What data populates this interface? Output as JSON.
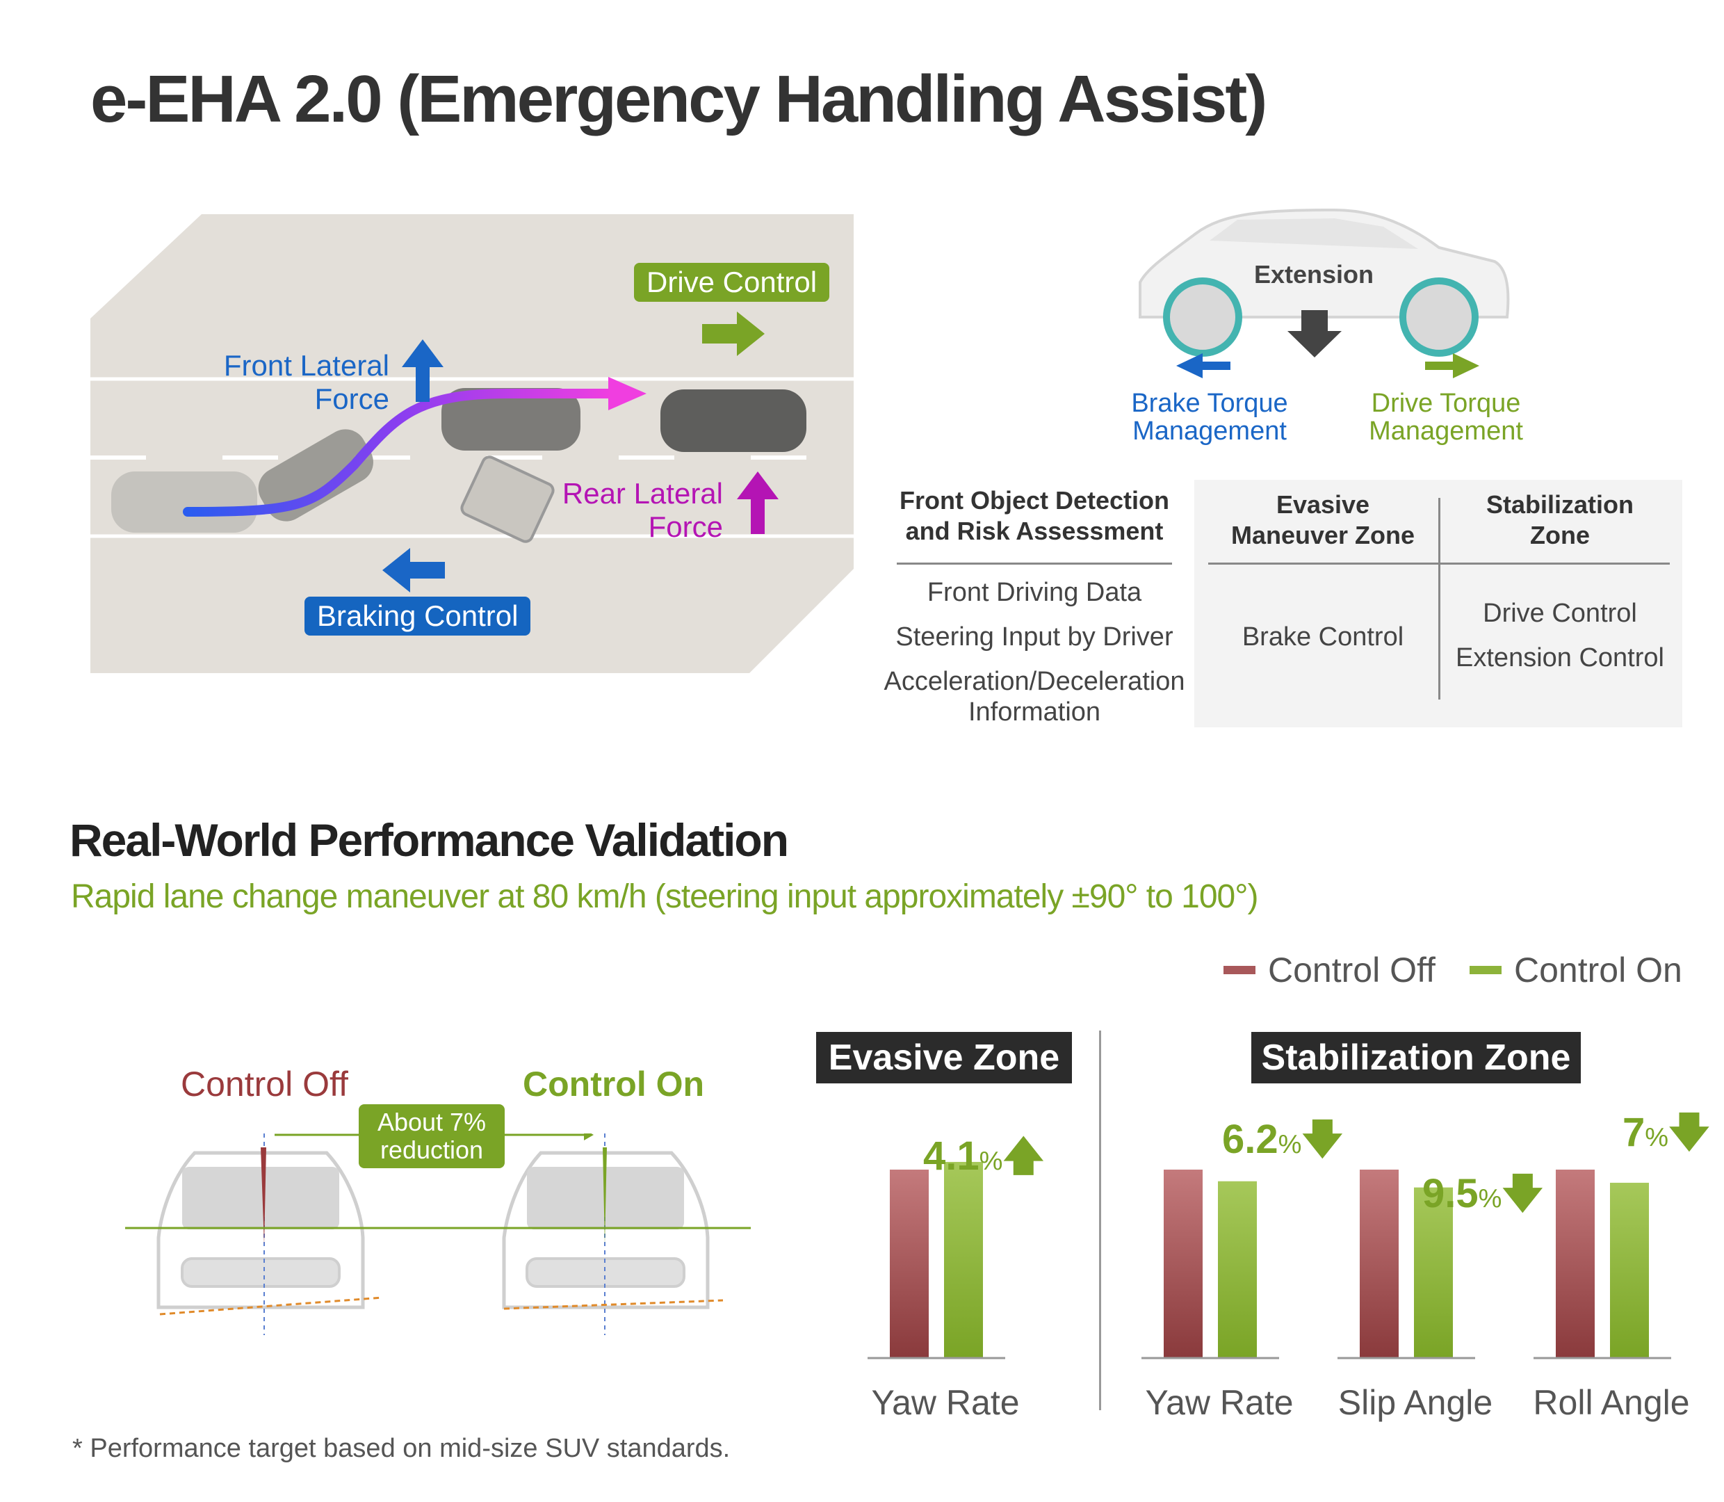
{
  "title": "e-EHA 2.0 (Emergency Handling Assist)",
  "diagram": {
    "drive_control": "Drive Control",
    "front_lateral_force": [
      "Front Lateral",
      "Force"
    ],
    "rear_lateral_force": [
      "Rear Lateral",
      "Force"
    ],
    "braking_control": "Braking Control"
  },
  "car_side": {
    "extension": "Extension",
    "brake_torque": [
      "Brake Torque",
      "Management"
    ],
    "drive_torque": [
      "Drive Torque",
      "Management"
    ]
  },
  "table": {
    "col1_header": [
      "Front Object Detection",
      "and Risk Assessment"
    ],
    "col2_header": [
      "Evasive",
      "Maneuver Zone"
    ],
    "col3_header": [
      "Stabilization",
      "Zone"
    ],
    "col1_items": [
      "Front Driving Data",
      "Steering Input by Driver",
      "Acceleration/Deceleration",
      "Information"
    ],
    "col2_items": [
      "Brake Control"
    ],
    "col3_items": [
      "Drive Control",
      "Extension Control"
    ]
  },
  "validation": {
    "title": "Real-World Performance Validation",
    "subtitle": "Rapid lane change maneuver at 80 km/h (steering input approximately ±90° to 100°)",
    "control_off": "Control Off",
    "control_on": "Control On",
    "reduction": [
      "About 7%",
      "reduction"
    ]
  },
  "colors": {
    "off": "#9a3a3c",
    "on": "#7aa426",
    "blue": "#1565c0",
    "magenta": "#b414b4"
  },
  "chart_data": {
    "type": "bar",
    "series": [
      {
        "name": "Control Off",
        "color": "#a8585a"
      },
      {
        "name": "Control On",
        "color": "#8db33a"
      }
    ],
    "zones": [
      {
        "name": "Evasive Zone",
        "groups": [
          {
            "category": "Yaw Rate",
            "off": 100,
            "on": 104.1,
            "change": "4.1",
            "unit": "%",
            "direction": "up"
          }
        ]
      },
      {
        "name": "Stabilization Zone",
        "groups": [
          {
            "category": "Yaw Rate",
            "off": 100,
            "on": 93.8,
            "change": "6.2",
            "unit": "%",
            "direction": "down"
          },
          {
            "category": "Slip Angle",
            "off": 100,
            "on": 90.5,
            "change": "9.5",
            "unit": "%",
            "direction": "down"
          },
          {
            "category": "Roll Angle",
            "off": 100,
            "on": 93,
            "change": "7",
            "unit": "%",
            "direction": "down"
          }
        ]
      }
    ]
  },
  "footnote": "* Performance target based on mid-size SUV standards."
}
